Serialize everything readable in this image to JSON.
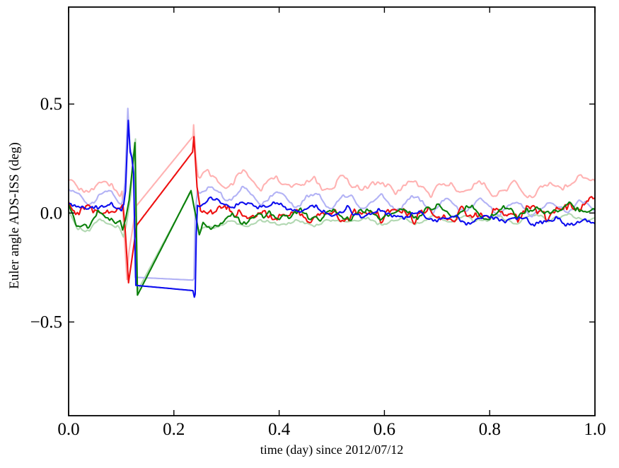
{
  "figure": {
    "background": "#ffffff",
    "axis_color": "#000000"
  },
  "chart_data": {
    "type": "line",
    "title": "",
    "xlabel": "time (day) since 2012/07/12",
    "ylabel": "Euler angle ADS-ISS (deg)",
    "xlim": [
      0.0,
      1.0
    ],
    "ylim": [
      -0.93,
      0.945
    ],
    "xticks": [
      0.0,
      0.2,
      0.4,
      0.6,
      0.8,
      1.0
    ],
    "xtick_labels": [
      "0.0",
      "0.2",
      "0.4",
      "0.6",
      "0.8",
      "1.0"
    ],
    "yticks": [
      0.5,
      0.0,
      -0.5
    ],
    "ytick_labels": [
      "0.5",
      "0.0",
      "−0.5"
    ],
    "grid": false,
    "legend": "none",
    "tick_direction": "in",
    "orbital_oscillation_period_day": 0.0645,
    "sample_step": 0.0015,
    "series": [
      {
        "name": "light-red",
        "color": "#ffb2b2",
        "line_width": 2.1,
        "gap_no_noise": [
          0.1015,
          0.2458
        ],
        "noise": {
          "seed": 11,
          "sin_amp": 0.03,
          "sin_period": 0.0645,
          "sin_phase": 0.13,
          "amp": 0.026,
          "scale": 0.013
        },
        "keypoints": [
          [
            0.0,
            0.125
          ],
          [
            0.02,
            0.1
          ],
          [
            0.05,
            0.13
          ],
          [
            0.08,
            0.12
          ],
          [
            0.1015,
            0.1
          ],
          [
            0.1045,
            -0.05
          ],
          [
            0.1107,
            -0.305
          ],
          [
            0.1145,
            -0.18
          ],
          [
            0.1285,
            0.032
          ],
          [
            0.2365,
            0.352
          ],
          [
            0.2375,
            0.405
          ],
          [
            0.2415,
            0.26
          ],
          [
            0.2458,
            0.17
          ],
          [
            0.3,
            0.15
          ],
          [
            0.4,
            0.14
          ],
          [
            0.5,
            0.13
          ],
          [
            0.6,
            0.125
          ],
          [
            0.7,
            0.12
          ],
          [
            0.8,
            0.11
          ],
          [
            0.9,
            0.1
          ],
          [
            0.955,
            0.155
          ],
          [
            0.98,
            0.14
          ],
          [
            1.0,
            0.15
          ]
        ]
      },
      {
        "name": "light-green",
        "color": "#b2d8b2",
        "line_width": 2.1,
        "gap_no_noise": [
          0.097,
          0.25
        ],
        "noise": {
          "seed": 33,
          "sin_amp": 0.011,
          "sin_period": 0.0645,
          "sin_phase": 0.5,
          "amp": 0.013,
          "scale": 0.012
        },
        "keypoints": [
          [
            0.0,
            0.01
          ],
          [
            0.015,
            -0.06
          ],
          [
            0.04,
            -0.082
          ],
          [
            0.06,
            -0.035
          ],
          [
            0.08,
            -0.04
          ],
          [
            0.097,
            -0.07
          ],
          [
            0.104,
            -0.11
          ],
          [
            0.11,
            -0.05
          ],
          [
            0.118,
            0.08
          ],
          [
            0.127,
            0.34
          ],
          [
            0.1302,
            -0.36
          ],
          [
            0.2325,
            0.098
          ],
          [
            0.247,
            -0.082
          ],
          [
            0.26,
            -0.06
          ],
          [
            0.35,
            -0.05
          ],
          [
            0.45,
            -0.045
          ],
          [
            0.55,
            -0.04
          ],
          [
            0.65,
            -0.035
          ],
          [
            0.75,
            -0.03
          ],
          [
            0.85,
            -0.028
          ],
          [
            1.0,
            -0.018
          ]
        ]
      },
      {
        "name": "light-blue",
        "color": "#b2b2f5",
        "line_width": 2.1,
        "gap_no_noise": [
          0.1042,
          0.2448
        ],
        "noise": {
          "seed": 22,
          "sin_amp": 0.028,
          "sin_period": 0.0645,
          "sin_phase": 0.06,
          "amp": 0.017,
          "scale": 0.011
        },
        "keypoints": [
          [
            0.0,
            0.09
          ],
          [
            0.03,
            0.06
          ],
          [
            0.06,
            0.085
          ],
          [
            0.09,
            0.06
          ],
          [
            0.1042,
            0.07
          ],
          [
            0.107,
            0.14
          ],
          [
            0.1125,
            0.48
          ],
          [
            0.1165,
            0.3
          ],
          [
            0.12,
            0.27
          ],
          [
            0.1235,
            0.19
          ],
          [
            0.1268,
            -0.295
          ],
          [
            0.2362,
            -0.308
          ],
          [
            0.2383,
            -0.3
          ],
          [
            0.2405,
            0.0
          ],
          [
            0.2448,
            0.105
          ],
          [
            0.3,
            0.09
          ],
          [
            0.4,
            0.075
          ],
          [
            0.5,
            0.06
          ],
          [
            0.6,
            0.05
          ],
          [
            0.7,
            0.04
          ],
          [
            0.8,
            0.03
          ],
          [
            0.9,
            0.02
          ],
          [
            0.97,
            0.035
          ],
          [
            1.0,
            0.01
          ]
        ]
      },
      {
        "name": "red",
        "color": "#ee1111",
        "line_width": 2.1,
        "gap_no_noise": [
          0.1035,
          0.2506
        ],
        "noise": {
          "seed": 44,
          "sin_amp": 0.02,
          "sin_period": 0.0645,
          "sin_phase": 0.6,
          "amp": 0.03,
          "scale": 0.009
        },
        "keypoints": [
          [
            0.0,
            0.045
          ],
          [
            0.02,
            0.02
          ],
          [
            0.045,
            -0.005
          ],
          [
            0.07,
            0.015
          ],
          [
            0.1035,
            0.035
          ],
          [
            0.1075,
            -0.08
          ],
          [
            0.1138,
            -0.32
          ],
          [
            0.1294,
            -0.056
          ],
          [
            0.2355,
            0.28
          ],
          [
            0.238,
            0.35
          ],
          [
            0.244,
            0.12
          ],
          [
            0.2506,
            0.01
          ],
          [
            0.27,
            0.03
          ],
          [
            0.35,
            -0.01
          ],
          [
            0.45,
            -0.02
          ],
          [
            0.55,
            0.0
          ],
          [
            0.65,
            -0.005
          ],
          [
            0.75,
            -0.01
          ],
          [
            0.85,
            0.0
          ],
          [
            0.93,
            0.01
          ],
          [
            0.97,
            0.04
          ],
          [
            0.985,
            0.09
          ],
          [
            1.0,
            0.06
          ]
        ]
      },
      {
        "name": "green",
        "color": "#0a800a",
        "line_width": 2.1,
        "gap_no_noise": [
          0.0975,
          0.252
        ],
        "noise": {
          "seed": 55,
          "sin_amp": 0.016,
          "sin_period": 0.0645,
          "sin_phase": 0.45,
          "amp": 0.022,
          "scale": 0.01
        },
        "keypoints": [
          [
            0.0,
            0.035
          ],
          [
            0.012,
            -0.045
          ],
          [
            0.035,
            -0.062
          ],
          [
            0.055,
            -0.005
          ],
          [
            0.075,
            -0.01
          ],
          [
            0.098,
            -0.035
          ],
          [
            0.1026,
            -0.078
          ],
          [
            0.108,
            -0.03
          ],
          [
            0.115,
            0.06
          ],
          [
            0.126,
            0.323
          ],
          [
            0.1308,
            -0.377
          ],
          [
            0.2325,
            0.103
          ],
          [
            0.2483,
            -0.1
          ],
          [
            0.2555,
            -0.05
          ],
          [
            0.3,
            -0.03
          ],
          [
            0.4,
            -0.015
          ],
          [
            0.5,
            -0.01
          ],
          [
            0.6,
            0.0
          ],
          [
            0.7,
            0.01
          ],
          [
            0.8,
            0.0
          ],
          [
            0.9,
            0.01
          ],
          [
            1.0,
            0.025
          ]
        ]
      },
      {
        "name": "blue",
        "color": "#0d0dee",
        "line_width": 2.1,
        "gap_no_noise": [
          0.1048,
          0.2448
        ],
        "noise": {
          "seed": 66,
          "sin_amp": 0.014,
          "sin_period": 0.0645,
          "sin_phase": 0.02,
          "amp": 0.018,
          "scale": 0.01
        },
        "keypoints": [
          [
            0.0,
            0.042
          ],
          [
            0.03,
            0.02
          ],
          [
            0.06,
            0.04
          ],
          [
            0.09,
            0.025
          ],
          [
            0.1048,
            0.04
          ],
          [
            0.108,
            0.1
          ],
          [
            0.1135,
            0.425
          ],
          [
            0.117,
            0.28
          ],
          [
            0.12,
            0.255
          ],
          [
            0.1235,
            0.18
          ],
          [
            0.1277,
            -0.332
          ],
          [
            0.2362,
            -0.356
          ],
          [
            0.2389,
            -0.386
          ],
          [
            0.2405,
            -0.372
          ],
          [
            0.2425,
            -0.1
          ],
          [
            0.2448,
            0.035
          ],
          [
            0.26,
            0.06
          ],
          [
            0.35,
            0.035
          ],
          [
            0.45,
            0.015
          ],
          [
            0.55,
            0.0
          ],
          [
            0.65,
            -0.015
          ],
          [
            0.75,
            -0.025
          ],
          [
            0.85,
            -0.03
          ],
          [
            1.0,
            -0.04
          ]
        ]
      }
    ]
  }
}
